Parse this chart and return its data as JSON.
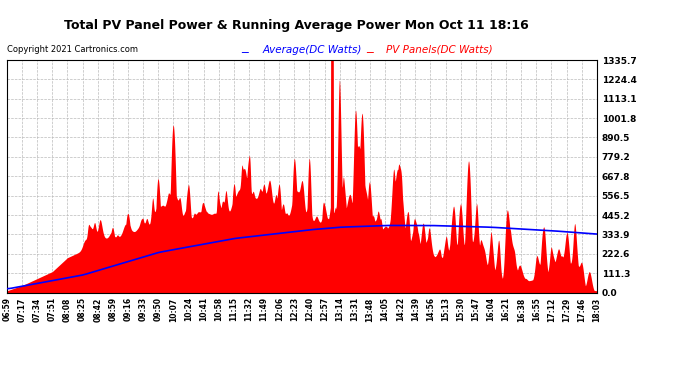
{
  "title": "Total PV Panel Power & Running Average Power Mon Oct 11 18:16",
  "copyright": "Copyright 2021 Cartronics.com",
  "legend_avg": "Average(DC Watts)",
  "legend_pv": "PV Panels(DC Watts)",
  "ymax": 1335.7,
  "ymin": 0.0,
  "yticks": [
    0.0,
    111.3,
    222.6,
    333.9,
    445.2,
    556.5,
    667.8,
    779.2,
    890.5,
    1001.8,
    1113.1,
    1224.4,
    1335.7
  ],
  "bg_color": "#ffffff",
  "grid_color": "#bbbbbb",
  "pv_color": "#ff0000",
  "avg_color": "#0000ff",
  "title_color": "#000000",
  "copyright_color": "#000000",
  "legend_avg_color": "#0000ff",
  "legend_pv_color": "#ff0000",
  "time_labels": [
    "06:59",
    "07:17",
    "07:34",
    "07:51",
    "08:08",
    "08:25",
    "08:42",
    "08:59",
    "09:16",
    "09:33",
    "09:50",
    "10:07",
    "10:24",
    "10:41",
    "10:58",
    "11:15",
    "11:32",
    "11:49",
    "12:06",
    "12:23",
    "12:40",
    "12:57",
    "13:14",
    "13:31",
    "13:48",
    "14:05",
    "14:22",
    "14:39",
    "14:56",
    "15:13",
    "15:30",
    "15:47",
    "16:04",
    "16:21",
    "16:38",
    "16:55",
    "17:12",
    "17:29",
    "17:46",
    "18:03"
  ],
  "avg_x": [
    0,
    5,
    10,
    15,
    20,
    22,
    25,
    28,
    32,
    36,
    39
  ],
  "avg_y": [
    20,
    100,
    230,
    310,
    360,
    375,
    385,
    385,
    375,
    355,
    335
  ],
  "pv_base_x": [
    0,
    1,
    2,
    3,
    4,
    5,
    6,
    7,
    8,
    9,
    10,
    11,
    12,
    13,
    14,
    15,
    16,
    17,
    18,
    19,
    20,
    21,
    22,
    23,
    24,
    25,
    26,
    27,
    28,
    29,
    30,
    31,
    32,
    33,
    34,
    35,
    36,
    37,
    38,
    39
  ],
  "pv_base_y": [
    10,
    40,
    80,
    120,
    200,
    240,
    280,
    310,
    330,
    350,
    370,
    390,
    410,
    430,
    440,
    445,
    440,
    435,
    430,
    420,
    410,
    400,
    390,
    380,
    360,
    340,
    300,
    260,
    200,
    160,
    120,
    100,
    80,
    70,
    60,
    50,
    40,
    30,
    20,
    10
  ]
}
